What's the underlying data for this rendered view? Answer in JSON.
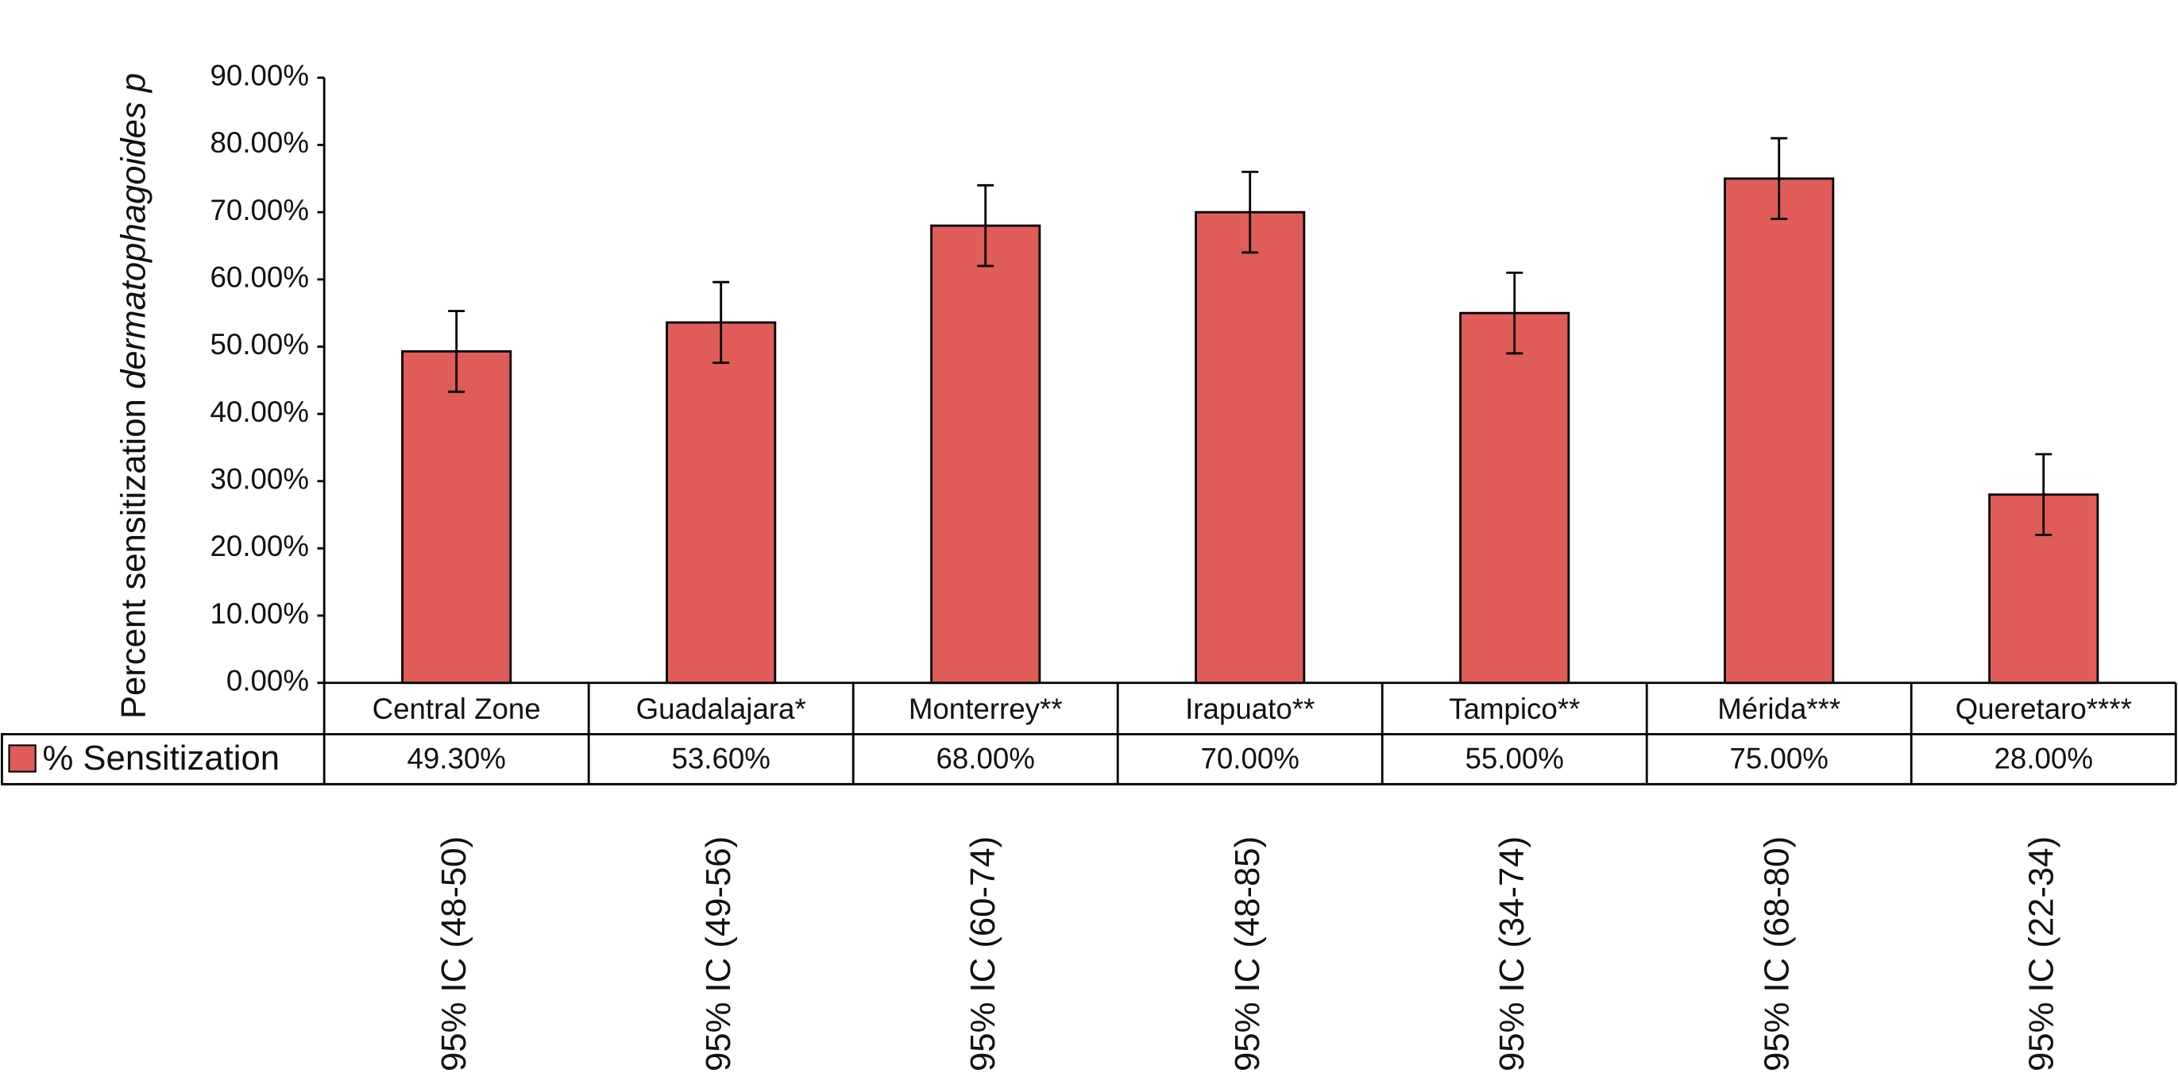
{
  "chart_data": {
    "type": "bar",
    "ylabel": [
      "Percent sensitization",
      "dermatophagoides p"
    ],
    "categories": [
      "Central Zone",
      "Guadalajara*",
      "Monterrey**",
      "Irapuato**",
      "Tampico**",
      "Mérida***",
      "Queretaro****"
    ],
    "series": [
      {
        "name": "% Sensitization",
        "color": "#e05c59",
        "values": [
          49.3,
          53.6,
          68,
          70,
          55,
          75,
          28
        ],
        "value_labels": [
          "49.30%",
          "53.60%",
          "68.00%",
          "70.00%",
          "55.00%",
          "75.00%",
          "28.00%"
        ],
        "errors": [
          6,
          6,
          6,
          6,
          6,
          6,
          6
        ]
      }
    ],
    "ci_labels": [
      "95% IC (48-50)",
      "95% IC (49-56)",
      "95% IC (60-74)",
      "95% IC (48-85)",
      "95% IC (34-74)",
      "95% IC (68-80)",
      "95% IC (22-34)"
    ],
    "ylim": [
      0,
      90
    ],
    "yticks": [
      {
        "value": 0,
        "label": "0.00%"
      },
      {
        "value": 10,
        "label": "10.00%"
      },
      {
        "value": 20,
        "label": "20.00%"
      },
      {
        "value": 30,
        "label": "30.00%"
      },
      {
        "value": 40,
        "label": "40.00%"
      },
      {
        "value": 50,
        "label": "50.00%"
      },
      {
        "value": 60,
        "label": "60.00%"
      },
      {
        "value": 70,
        "label": "70.00%"
      },
      {
        "value": 80,
        "label": "80.00%"
      },
      {
        "value": 90,
        "label": "90.00%"
      }
    ]
  }
}
